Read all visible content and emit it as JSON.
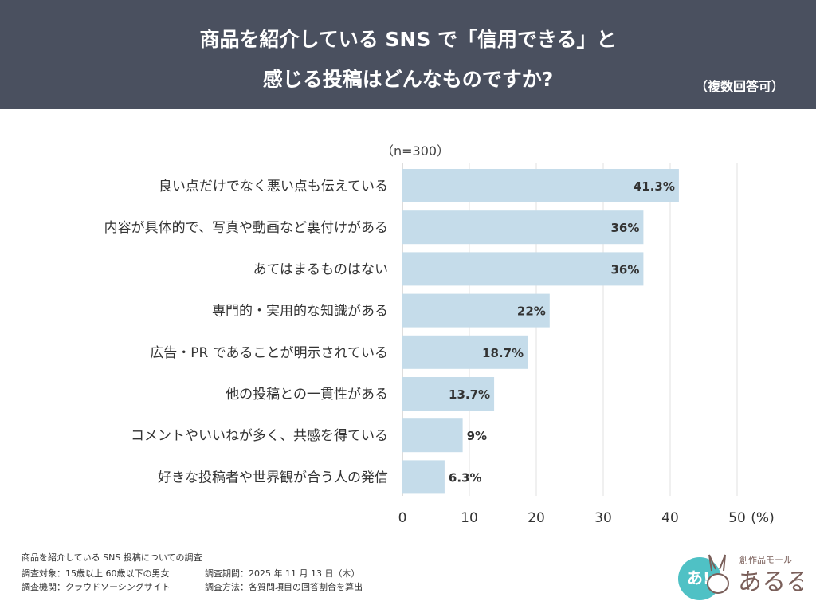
{
  "header": {
    "title_line1": "商品を紹介している SNS で「信用できる」と",
    "title_line2": "感じる投稿はどんなものですか?",
    "note": "（複数回答可）"
  },
  "sample": "（n=300）",
  "chart_data": {
    "type": "bar",
    "orientation": "horizontal",
    "categories": [
      "良い点だけでなく悪い点も伝えている",
      "内容が具体的で、写真や動画など裏付けがある",
      "あてはまるものはない",
      "専門的・実用的な知識がある",
      "広告・PR であることが明示されている",
      "他の投稿との一貫性がある",
      "コメントやいいねが多く、共感を得ている",
      "好きな投稿者や世界観が合う人の発信"
    ],
    "values": [
      41.3,
      36,
      36,
      22,
      18.7,
      13.7,
      9,
      6.3
    ],
    "value_labels": [
      "41.3%",
      "36%",
      "36%",
      "22%",
      "18.7%",
      "13.7%",
      "9%",
      "6.3%"
    ],
    "xlim": [
      0,
      50
    ],
    "xticks": [
      "0",
      "10",
      "20",
      "30",
      "40",
      "50"
    ],
    "xunit": "(%)",
    "grid": true,
    "bar_color": "#c5dcea"
  },
  "footer": {
    "title": "商品を紹介している SNS 投稿についての調査",
    "target": "調査対象：15歳以上 60歳以下の男女",
    "period": "調査期間：2025 年 11 月 13 日（木）",
    "org": "調査機関：クラウドソーシングサイト",
    "method": "調査方法：各質問項目の回答割合を算出"
  },
  "logo": {
    "text": "創作品モール あるる"
  }
}
